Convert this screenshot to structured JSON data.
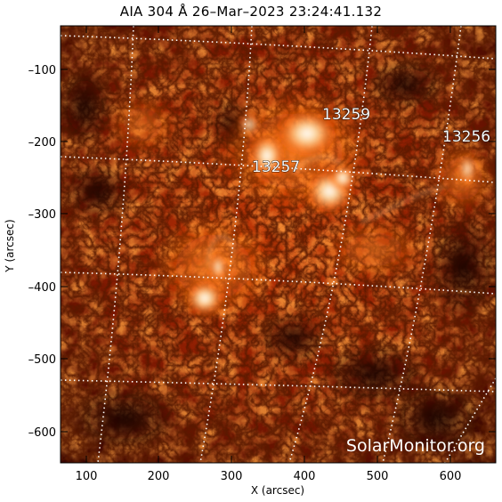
{
  "title": "AIA 304 Å 26–Mar–2023 23:24:41.132",
  "axes": {
    "x_label": "X (arcsec)",
    "y_label": "Y (arcsec)",
    "x_ticks": [
      "100",
      "200",
      "300",
      "400",
      "500",
      "600"
    ],
    "y_ticks": [
      "–100",
      "–200",
      "–300",
      "–400",
      "–500",
      "–600"
    ]
  },
  "regions": [
    {
      "label": "13259"
    },
    {
      "label": "13257"
    },
    {
      "label": "13256"
    }
  ],
  "watermark": "SolarMonitor.org",
  "colors": {
    "background": "#000000",
    "chromosphere_dark": "#3a0600",
    "chromosphere_mid": "#b23208",
    "chromosphere_bright": "#ff9a3c",
    "grid": "#ffffff"
  }
}
